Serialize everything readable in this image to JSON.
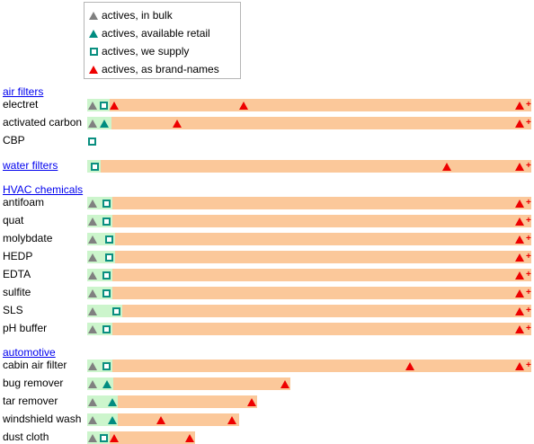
{
  "colors": {
    "bulk": "#808080",
    "retail": "#008c80",
    "supply": "#0a8f80",
    "brand": "#ee0000",
    "green_bar": "#ccf5cc",
    "orange_bar": "#fbc89a",
    "link": "#0000ee"
  },
  "legend": {
    "items": [
      {
        "icon": "gray-triangle-icon",
        "label": "actives, in bulk"
      },
      {
        "icon": "teal-triangle-icon",
        "label": "actives, available retail"
      },
      {
        "icon": "teal-square-icon",
        "label": "actives, we supply"
      },
      {
        "icon": "red-triangle-icon",
        "label": "actives, as brand-names"
      }
    ]
  },
  "sections": [
    {
      "title": "air filters",
      "rows": [
        {
          "label": "electret"
        },
        {
          "label": "activated carbon"
        },
        {
          "label": "CBP"
        }
      ]
    },
    {
      "title": "water filters",
      "rows": []
    },
    {
      "title": "HVAC chemicals",
      "rows": [
        {
          "label": "antifoam"
        },
        {
          "label": "quat"
        },
        {
          "label": "molybdate"
        },
        {
          "label": "HEDP"
        },
        {
          "label": "EDTA"
        },
        {
          "label": "sulfite"
        },
        {
          "label": "SLS"
        },
        {
          "label": "pH buffer"
        }
      ]
    },
    {
      "title": "automotive",
      "rows": [
        {
          "label": "cabin air filter"
        },
        {
          "label": "bug remover"
        },
        {
          "label": "tar remover"
        },
        {
          "label": "windshield wash"
        },
        {
          "label": "dust cloth"
        }
      ]
    }
  ],
  "plus_symbol": "+"
}
